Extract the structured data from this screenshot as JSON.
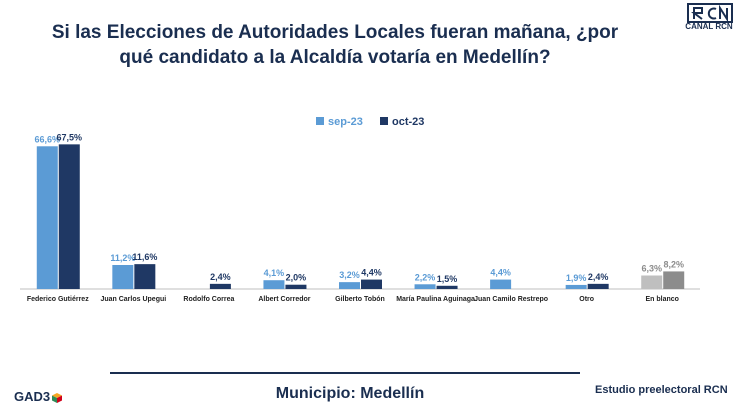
{
  "header": {
    "title_line1": "Si las Elecciones de Autoridades Locales fueran mañana, ¿por",
    "title_line2": "qué candidato a la Alcaldía votaría en Medellín?",
    "brand": "CANAL RCN"
  },
  "footer": {
    "left_brand": "GAD3",
    "center": "Municipio: Medellín",
    "right": "Estudio preelectoral RCN"
  },
  "colors": {
    "sep": "#5b9bd5",
    "oct": "#1f3864",
    "sep_gray": "#bfbfbf",
    "oct_gray": "#8c8c8c",
    "sep_label": "#5b9bd5",
    "oct_label": "#1f3864",
    "title": "#1a2e50"
  },
  "chart_data": {
    "type": "bar",
    "categories": [
      "Federico Gutiérrez",
      "Juan Carlos Upegui",
      "Rodolfo Correa",
      "Albert Corredor",
      "Gilberto Tobón",
      "María Paulina Aguinaga",
      "Juan Camilo Restrepo",
      "Otro",
      "En blanco"
    ],
    "series": [
      {
        "name": "sep-23",
        "values": [
          66.6,
          11.2,
          null,
          4.1,
          3.2,
          2.2,
          4.4,
          1.9,
          6.3
        ],
        "labels": [
          "66,6%",
          "11,2%",
          "",
          "4,1%",
          "3,2%",
          "2,2%",
          "4,4%",
          "1,9%",
          "6,3%"
        ]
      },
      {
        "name": "oct-23",
        "values": [
          67.5,
          11.6,
          2.4,
          2.0,
          4.4,
          1.5,
          null,
          2.4,
          8.2
        ],
        "labels": [
          "67,5%",
          "11,6%",
          "2,4%",
          "2,0%",
          "4,4%",
          "1,5%",
          "",
          "2,4%",
          "8,2%"
        ]
      }
    ],
    "legend": "top-center",
    "ylim": [
      0,
      70
    ],
    "grid": false
  }
}
